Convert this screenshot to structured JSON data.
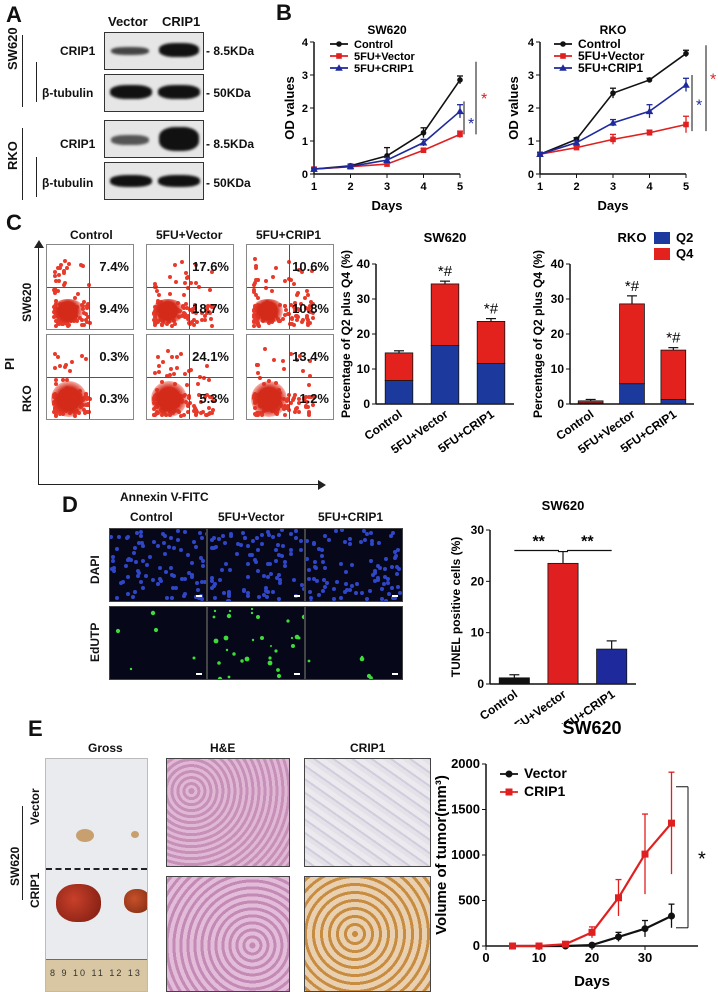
{
  "panels": {
    "A": "A",
    "B": "B",
    "C": "C",
    "D": "D",
    "E": "E"
  },
  "A": {
    "columns": [
      "Vector",
      "CRIP1"
    ],
    "cell_lines": [
      "SW620",
      "RKO"
    ],
    "rows": [
      "CRIP1",
      "β-tubulin",
      "CRIP1",
      "β-tubulin"
    ],
    "sizes": [
      "8.5KDa",
      "50KDa",
      "8.5KDa",
      "50KDa"
    ]
  },
  "B": {
    "legend": [
      "Control",
      "5FU+Vector",
      "5FU+CRIP1"
    ],
    "significance": [
      "*",
      "*",
      "*",
      "*"
    ]
  },
  "C": {
    "columns": [
      "Control",
      "5FU+Vector",
      "5FU+CRIP1"
    ],
    "rows": [
      "SW620",
      "RKO"
    ],
    "y_axis": "PI",
    "x_axis": "Annexin V-FITC",
    "percentages": [
      [
        "7.4%",
        "17.6%",
        "10.6%"
      ],
      [
        "9.4%",
        "18.7%",
        "10.8%"
      ],
      [
        "0.3%",
        "24.1%",
        "13.4%"
      ],
      [
        "0.3%",
        "5.3%",
        "1.2%"
      ]
    ],
    "legend": [
      "Q2",
      "Q4"
    ],
    "bar_annotations": [
      "*#",
      "*#",
      "*#",
      "*#"
    ]
  },
  "D": {
    "columns": [
      "Control",
      "5FU+Vector",
      "5FU+CRIP1"
    ],
    "rows": [
      "DAPI",
      "EdUTP"
    ],
    "significance": [
      "**",
      "**"
    ]
  },
  "E": {
    "columns": [
      "Gross",
      "H&E",
      "CRIP1"
    ],
    "cell_line": "SW620",
    "rows": [
      "Vector",
      "CRIP1"
    ],
    "legend": [
      "Vector",
      "CRIP1"
    ],
    "significance": "*",
    "ruler_text": "8 9 10 11 12 13"
  },
  "colors": {
    "control": "#111111",
    "vector": "#e02020",
    "crip1": "#1e2a9c",
    "q2": "#1c3a9e",
    "q4": "#e3221d"
  },
  "chart_data": [
    {
      "id": "B-SW620",
      "type": "line",
      "title": "SW620",
      "xlabel": "Days",
      "ylabel": "OD values",
      "x": [
        1,
        2,
        3,
        4,
        5
      ],
      "xlim": [
        1,
        5
      ],
      "ylim": [
        0,
        4
      ],
      "yticks": [
        0,
        1,
        2,
        3,
        4
      ],
      "series": [
        {
          "name": "Control",
          "values": [
            0.15,
            0.25,
            0.55,
            1.25,
            2.85
          ],
          "errors": [
            0.03,
            0.05,
            0.25,
            0.15,
            0.12
          ]
        },
        {
          "name": "5FU+Vector",
          "values": [
            0.15,
            0.22,
            0.3,
            0.72,
            1.2
          ],
          "errors": [
            0.03,
            0.04,
            0.05,
            0.05,
            0.1
          ]
        },
        {
          "name": "5FU+CRIP1",
          "values": [
            0.15,
            0.23,
            0.42,
            0.95,
            1.9
          ],
          "errors": [
            0.03,
            0.05,
            0.08,
            0.1,
            0.2
          ]
        }
      ]
    },
    {
      "id": "B-RKO",
      "type": "line",
      "title": "RKO",
      "xlabel": "Days",
      "ylabel": "OD values",
      "x": [
        1,
        2,
        3,
        4,
        5
      ],
      "xlim": [
        1,
        5
      ],
      "ylim": [
        0,
        4
      ],
      "yticks": [
        0,
        1,
        2,
        3,
        4
      ],
      "series": [
        {
          "name": "Control",
          "values": [
            0.6,
            1.05,
            2.45,
            2.85,
            3.65
          ],
          "errors": [
            0.05,
            0.05,
            0.15,
            0.05,
            0.1
          ]
        },
        {
          "name": "5FU+Vector",
          "values": [
            0.6,
            0.8,
            1.05,
            1.25,
            1.5
          ],
          "errors": [
            0.05,
            0.05,
            0.15,
            0.08,
            0.25
          ]
        },
        {
          "name": "5FU+CRIP1",
          "values": [
            0.6,
            0.95,
            1.55,
            1.9,
            2.7
          ],
          "errors": [
            0.05,
            0.05,
            0.1,
            0.2,
            0.2
          ]
        }
      ]
    },
    {
      "id": "C-SW620",
      "type": "bar",
      "stacked": true,
      "title": "SW620",
      "ylabel": "Percentage of Q2 plus Q4 (%)",
      "categories": [
        "Control",
        "5FU+Vector",
        "5FU+CRIP1"
      ],
      "ylim": [
        0,
        40
      ],
      "yticks": [
        0,
        10,
        20,
        30,
        40
      ],
      "series": [
        {
          "name": "Q2",
          "values": [
            6.7,
            16.7,
            11.6
          ],
          "errors": [
            0.6,
            0.8,
            0.7
          ]
        },
        {
          "name": "Q4",
          "values": [
            7.9,
            17.6,
            12.0
          ],
          "errors": [
            0.6,
            0.8,
            0.8
          ]
        }
      ]
    },
    {
      "id": "C-RKO",
      "type": "bar",
      "stacked": true,
      "title": "RKO",
      "ylabel": "Percentage of Q2 plus Q4 (%)",
      "categories": [
        "Control",
        "5FU+Vector",
        "5FU+CRIP1"
      ],
      "ylim": [
        0,
        40
      ],
      "yticks": [
        0,
        10,
        20,
        30,
        40
      ],
      "series": [
        {
          "name": "Q2",
          "values": [
            0.3,
            5.8,
            1.3
          ],
          "errors": [
            0.3,
            0.5,
            0.3
          ]
        },
        {
          "name": "Q4",
          "values": [
            0.6,
            22.8,
            14.1
          ],
          "errors": [
            0.4,
            2.3,
            0.7
          ]
        }
      ]
    },
    {
      "id": "D-SW620",
      "type": "bar",
      "title": "SW620",
      "ylabel": "TUNEL positive cells (%)",
      "categories": [
        "Control",
        "5FU+Vector",
        "5FU+CRIP1"
      ],
      "ylim": [
        0,
        30
      ],
      "yticks": [
        0,
        10,
        20,
        30
      ],
      "series": [
        {
          "name": "TUNEL",
          "values": [
            1.2,
            23.5,
            6.8
          ],
          "errors": [
            0.6,
            2.3,
            1.6
          ]
        }
      ]
    },
    {
      "id": "E-SW620",
      "type": "line",
      "title": "SW620",
      "xlabel": "Days",
      "ylabel": "Volume of tumor(mm³)",
      "x": [
        5,
        10,
        15,
        20,
        25,
        30,
        35
      ],
      "xlim": [
        0,
        40
      ],
      "ylim": [
        0,
        2000
      ],
      "xticks": [
        0,
        10,
        20,
        30
      ],
      "yticks": [
        0,
        500,
        1000,
        1500,
        2000
      ],
      "series": [
        {
          "name": "Vector",
          "values": [
            0,
            0,
            0,
            10,
            100,
            190,
            330
          ],
          "errors": [
            0,
            0,
            0,
            10,
            50,
            90,
            130
          ]
        },
        {
          "name": "CRIP1",
          "values": [
            0,
            0,
            20,
            150,
            530,
            1010,
            1350
          ],
          "errors": [
            0,
            0,
            10,
            60,
            200,
            440,
            560
          ]
        }
      ]
    }
  ]
}
